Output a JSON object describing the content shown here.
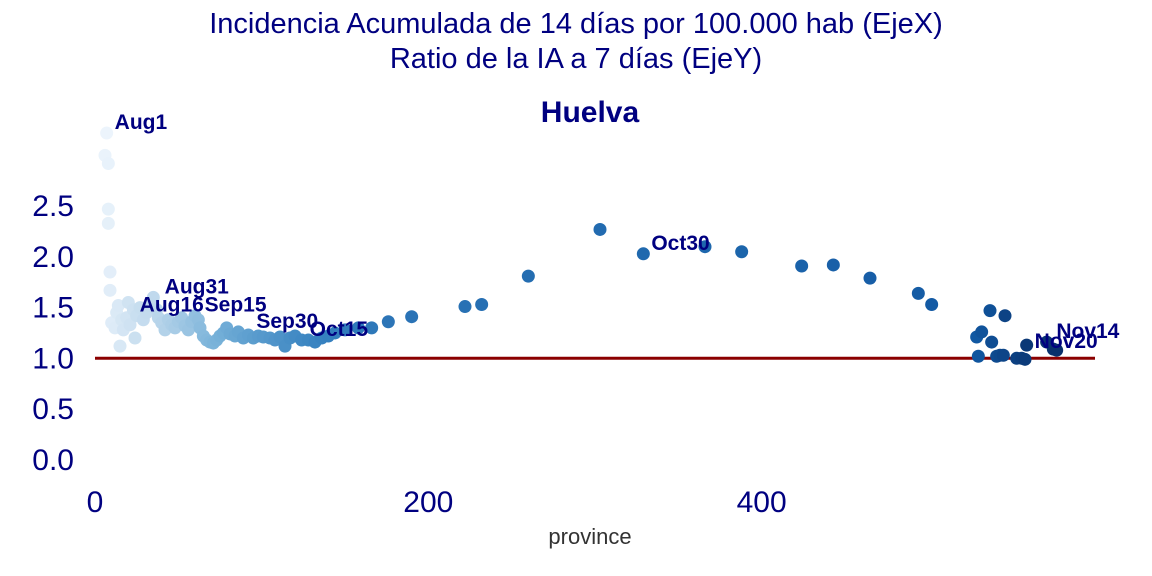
{
  "figure": {
    "suptitle_line1": "Incidencia Acumulada de 14 días por 100.000 hab (EjeX)",
    "suptitle_line2": "Ratio de la IA a 7 días (EjeY)",
    "title_color": "#000080",
    "reference_line_color": "#8b0000"
  },
  "chart_data": {
    "type": "scatter",
    "title": "Huelva",
    "xlabel": "province",
    "ylabel": "",
    "xlim": [
      0,
      600
    ],
    "ylim": [
      -0.15,
      3.25
    ],
    "xticks": [
      "0",
      "200",
      "400"
    ],
    "xtick_values": [
      0,
      200,
      400
    ],
    "yticks": [
      "0.0",
      "0.5",
      "1.0",
      "1.5",
      "2.0",
      "2.5"
    ],
    "ytick_values": [
      0.0,
      0.5,
      1.0,
      1.5,
      2.0,
      2.5
    ],
    "grid": false,
    "reference_line": {
      "y": 1.0,
      "x_from": 0,
      "x_to": 600
    },
    "colormap": "Blues",
    "points": [
      {
        "x": 7,
        "y": 3.22
      },
      {
        "x": 6,
        "y": 3.0
      },
      {
        "x": 8,
        "y": 2.92
      },
      {
        "x": 8,
        "y": 2.47
      },
      {
        "x": 8,
        "y": 2.33
      },
      {
        "x": 9,
        "y": 1.85
      },
      {
        "x": 9,
        "y": 1.67
      },
      {
        "x": 10,
        "y": 1.35
      },
      {
        "x": 12,
        "y": 1.3
      },
      {
        "x": 13,
        "y": 1.45
      },
      {
        "x": 14,
        "y": 1.52
      },
      {
        "x": 15,
        "y": 1.12
      },
      {
        "x": 16,
        "y": 1.38
      },
      {
        "x": 17,
        "y": 1.28
      },
      {
        "x": 19,
        "y": 1.4
      },
      {
        "x": 20,
        "y": 1.55
      },
      {
        "x": 21,
        "y": 1.33
      },
      {
        "x": 23,
        "y": 1.48
      },
      {
        "x": 24,
        "y": 1.2
      },
      {
        "x": 25,
        "y": 1.42
      },
      {
        "x": 27,
        "y": 1.5
      },
      {
        "x": 29,
        "y": 1.38
      },
      {
        "x": 31,
        "y": 1.45
      },
      {
        "x": 33,
        "y": 1.52
      },
      {
        "x": 35,
        "y": 1.6
      },
      {
        "x": 37,
        "y": 1.48
      },
      {
        "x": 38,
        "y": 1.4
      },
      {
        "x": 40,
        "y": 1.35
      },
      {
        "x": 42,
        "y": 1.28
      },
      {
        "x": 44,
        "y": 1.38
      },
      {
        "x": 46,
        "y": 1.33
      },
      {
        "x": 48,
        "y": 1.3
      },
      {
        "x": 50,
        "y": 1.36
      },
      {
        "x": 52,
        "y": 1.4
      },
      {
        "x": 54,
        "y": 1.32
      },
      {
        "x": 56,
        "y": 1.28
      },
      {
        "x": 58,
        "y": 1.36
      },
      {
        "x": 60,
        "y": 1.42
      },
      {
        "x": 62,
        "y": 1.38
      },
      {
        "x": 63,
        "y": 1.3
      },
      {
        "x": 65,
        "y": 1.22
      },
      {
        "x": 67,
        "y": 1.18
      },
      {
        "x": 69,
        "y": 1.16
      },
      {
        "x": 71,
        "y": 1.15
      },
      {
        "x": 73,
        "y": 1.18
      },
      {
        "x": 75,
        "y": 1.22
      },
      {
        "x": 77,
        "y": 1.25
      },
      {
        "x": 79,
        "y": 1.3
      },
      {
        "x": 81,
        "y": 1.24
      },
      {
        "x": 84,
        "y": 1.22
      },
      {
        "x": 86,
        "y": 1.26
      },
      {
        "x": 89,
        "y": 1.2
      },
      {
        "x": 92,
        "y": 1.23
      },
      {
        "x": 95,
        "y": 1.2
      },
      {
        "x": 98,
        "y": 1.22
      },
      {
        "x": 101,
        "y": 1.21
      },
      {
        "x": 105,
        "y": 1.2
      },
      {
        "x": 108,
        "y": 1.18
      },
      {
        "x": 111,
        "y": 1.21
      },
      {
        "x": 114,
        "y": 1.12
      },
      {
        "x": 117,
        "y": 1.2
      },
      {
        "x": 120,
        "y": 1.22
      },
      {
        "x": 124,
        "y": 1.18
      },
      {
        "x": 128,
        "y": 1.18
      },
      {
        "x": 132,
        "y": 1.16
      },
      {
        "x": 136,
        "y": 1.2
      },
      {
        "x": 140,
        "y": 1.22
      },
      {
        "x": 144,
        "y": 1.25
      },
      {
        "x": 150,
        "y": 1.28
      },
      {
        "x": 158,
        "y": 1.3
      },
      {
        "x": 166,
        "y": 1.3
      },
      {
        "x": 176,
        "y": 1.36
      },
      {
        "x": 190,
        "y": 1.41
      },
      {
        "x": 222,
        "y": 1.51
      },
      {
        "x": 232,
        "y": 1.53
      },
      {
        "x": 260,
        "y": 1.81
      },
      {
        "x": 303,
        "y": 2.27
      },
      {
        "x": 329,
        "y": 2.03
      },
      {
        "x": 366,
        "y": 2.1
      },
      {
        "x": 388,
        "y": 2.05
      },
      {
        "x": 424,
        "y": 1.91
      },
      {
        "x": 443,
        "y": 1.92
      },
      {
        "x": 465,
        "y": 1.79
      },
      {
        "x": 494,
        "y": 1.64
      },
      {
        "x": 502,
        "y": 1.53
      },
      {
        "x": 529,
        "y": 1.21
      },
      {
        "x": 530,
        "y": 1.02
      },
      {
        "x": 532,
        "y": 1.26
      },
      {
        "x": 537,
        "y": 1.47
      },
      {
        "x": 538,
        "y": 1.16
      },
      {
        "x": 541,
        "y": 1.02
      },
      {
        "x": 543,
        "y": 1.03
      },
      {
        "x": 545,
        "y": 1.03
      },
      {
        "x": 546,
        "y": 1.42
      },
      {
        "x": 553,
        "y": 1.0
      },
      {
        "x": 556,
        "y": 1.0
      },
      {
        "x": 558,
        "y": 0.99
      },
      {
        "x": 559,
        "y": 1.13
      },
      {
        "x": 571,
        "y": 1.16
      },
      {
        "x": 575,
        "y": 1.09
      },
      {
        "x": 577,
        "y": 1.08
      }
    ],
    "annotations": [
      {
        "text": "Aug1",
        "x": 7,
        "y": 3.22
      },
      {
        "text": "Aug16",
        "x": 22,
        "y": 1.42
      },
      {
        "text": "Aug31",
        "x": 37,
        "y": 1.6
      },
      {
        "text": "Sep15",
        "x": 61,
        "y": 1.42
      },
      {
        "text": "Sep30",
        "x": 92,
        "y": 1.26
      },
      {
        "text": "Oct15",
        "x": 124,
        "y": 1.18
      },
      {
        "text": "Oct30",
        "x": 329,
        "y": 2.03
      },
      {
        "text": "Nov14",
        "x": 572,
        "y": 1.16
      },
      {
        "text": "Nov20",
        "x": 559,
        "y": 1.06
      }
    ]
  }
}
